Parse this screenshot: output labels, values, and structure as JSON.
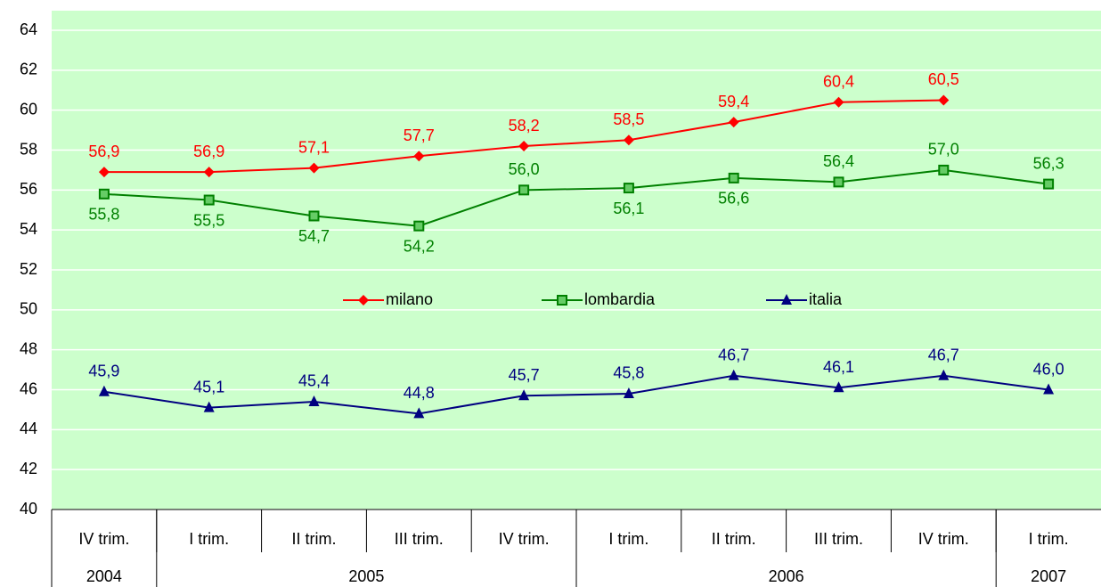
{
  "chart_data": {
    "type": "line",
    "categories": [
      "IV trim.",
      "I trim.",
      "II trim.",
      "III trim.",
      "IV trim.",
      "I trim.",
      "II trim.",
      "III trim.",
      "IV trim.",
      "I trim."
    ],
    "x_groups": [
      {
        "label": "2004",
        "span": 1
      },
      {
        "label": "2005",
        "span": 4
      },
      {
        "label": "2006",
        "span": 4
      },
      {
        "label": "2007",
        "span": 1
      }
    ],
    "series": [
      {
        "name": "milano",
        "color": "#ff0000",
        "marker": "diamond",
        "values": [
          56.9,
          56.9,
          57.1,
          57.7,
          58.2,
          58.5,
          59.4,
          60.4,
          60.5,
          null
        ],
        "value_labels": [
          "56,9",
          "56,9",
          "57,1",
          "57,7",
          "58,2",
          "58,5",
          "59,4",
          "60,4",
          "60,5",
          null
        ]
      },
      {
        "name": "lombardia",
        "color": "#008000",
        "marker": "square",
        "values": [
          55.8,
          55.5,
          54.7,
          54.2,
          56.0,
          56.1,
          56.6,
          56.4,
          57.0,
          56.3
        ],
        "value_labels": [
          "55,8",
          "55,5",
          "54,7",
          "54,2",
          "56,0",
          "56,1",
          "56,6",
          "56,4",
          "57,0",
          "56,3"
        ]
      },
      {
        "name": "italia",
        "color": "#000080",
        "marker": "triangle",
        "values": [
          45.9,
          45.1,
          45.4,
          44.8,
          45.7,
          45.8,
          46.7,
          46.1,
          46.7,
          46.0
        ],
        "value_labels": [
          "45,9",
          "45,1",
          "45,4",
          "44,8",
          "45,7",
          "45,8",
          "46,7",
          "46,1",
          "46,7",
          "46,0"
        ]
      }
    ],
    "ylim": [
      40,
      64
    ],
    "yticks": [
      40,
      42,
      44,
      46,
      48,
      50,
      52,
      54,
      56,
      58,
      60,
      62,
      64
    ],
    "grid": true,
    "legend": "center",
    "background": "#ccffcc"
  }
}
